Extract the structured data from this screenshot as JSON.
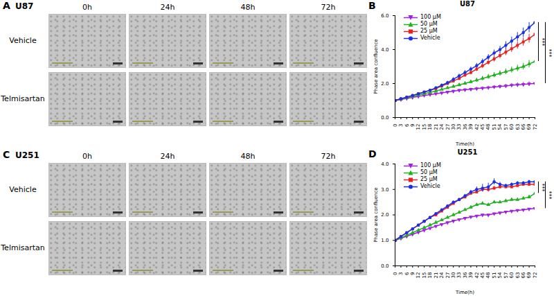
{
  "image_panels": [
    {
      "panel_label": "A",
      "title": "U87",
      "columns": [
        "0h",
        "24h",
        "48h",
        "72h"
      ],
      "rows": [
        "Vehicle",
        "Telmisartan"
      ]
    },
    {
      "panel_label": "C",
      "title": "U251",
      "columns": [
        "0h",
        "24h",
        "48h",
        "72h"
      ],
      "rows": [
        "Vehicle",
        "Telmisartan"
      ]
    }
  ],
  "chart_data": [
    {
      "panel_label": "B",
      "type": "line",
      "title": "U87",
      "x_label": "Time(h)",
      "y_label": "Phase area confluence",
      "x": [
        0,
        3,
        6,
        9,
        12,
        15,
        18,
        21,
        24,
        27,
        30,
        33,
        36,
        39,
        42,
        45,
        48,
        51,
        54,
        57,
        60,
        63,
        66,
        69,
        72
      ],
      "xlim": [
        0,
        72
      ],
      "xticks": [
        0,
        3,
        6,
        9,
        12,
        15,
        18,
        21,
        24,
        27,
        30,
        33,
        36,
        39,
        42,
        45,
        48,
        51,
        54,
        57,
        60,
        63,
        66,
        69,
        72
      ],
      "ylim": [
        0,
        6
      ],
      "yticks": [
        0,
        2,
        4,
        6
      ],
      "legend": "top-left",
      "series": [
        {
          "name": "100 μM",
          "color": "#a020e0",
          "marker": "triangle-down",
          "values": [
            1.0,
            1.06,
            1.12,
            1.18,
            1.24,
            1.3,
            1.35,
            1.4,
            1.45,
            1.5,
            1.55,
            1.6,
            1.63,
            1.66,
            1.7,
            1.73,
            1.76,
            1.8,
            1.83,
            1.86,
            1.9,
            1.93,
            1.95,
            1.98,
            2.0
          ],
          "errors": [
            0,
            0.01,
            0.02,
            0.02,
            0.03,
            0.03,
            0.04,
            0.04,
            0.05,
            0.05,
            0.06,
            0.06,
            0.07,
            0.07,
            0.08,
            0.08,
            0.09,
            0.09,
            0.1,
            0.1,
            0.11,
            0.11,
            0.12,
            0.12,
            0.13
          ]
        },
        {
          "name": "50 μM",
          "color": "#20b020",
          "marker": "triangle",
          "values": [
            1.0,
            1.08,
            1.16,
            1.24,
            1.32,
            1.4,
            1.48,
            1.56,
            1.65,
            1.74,
            1.83,
            1.92,
            2.01,
            2.1,
            2.2,
            2.3,
            2.4,
            2.5,
            2.6,
            2.7,
            2.8,
            2.9,
            3.0,
            3.15,
            3.3
          ],
          "errors": [
            0,
            0.01,
            0.02,
            0.03,
            0.03,
            0.04,
            0.05,
            0.05,
            0.06,
            0.07,
            0.08,
            0.09,
            0.1,
            0.11,
            0.12,
            0.13,
            0.14,
            0.15,
            0.16,
            0.17,
            0.18,
            0.19,
            0.2,
            0.22,
            0.24
          ]
        },
        {
          "name": "25 μM",
          "color": "#e82020",
          "marker": "square",
          "values": [
            1.0,
            1.1,
            1.2,
            1.3,
            1.4,
            1.5,
            1.6,
            1.7,
            1.85,
            2.0,
            2.15,
            2.3,
            2.5,
            2.65,
            2.85,
            3.05,
            3.25,
            3.45,
            3.65,
            3.85,
            4.05,
            4.25,
            4.45,
            4.65,
            4.9
          ],
          "errors": [
            0,
            0.02,
            0.03,
            0.04,
            0.05,
            0.05,
            0.06,
            0.07,
            0.08,
            0.09,
            0.1,
            0.11,
            0.12,
            0.13,
            0.14,
            0.15,
            0.16,
            0.17,
            0.18,
            0.2,
            0.21,
            0.22,
            0.24,
            0.26,
            0.28
          ]
        },
        {
          "name": "Vehicle",
          "color": "#1a30e8",
          "marker": "circle",
          "values": [
            1.0,
            1.1,
            1.2,
            1.3,
            1.4,
            1.5,
            1.6,
            1.75,
            1.9,
            2.05,
            2.25,
            2.45,
            2.65,
            2.85,
            3.05,
            3.3,
            3.55,
            3.8,
            4.0,
            4.25,
            4.5,
            4.75,
            5.0,
            5.3,
            5.6
          ],
          "errors": [
            0,
            0.02,
            0.03,
            0.04,
            0.05,
            0.05,
            0.06,
            0.07,
            0.08,
            0.09,
            0.1,
            0.11,
            0.12,
            0.13,
            0.14,
            0.15,
            0.16,
            0.18,
            0.2,
            0.22,
            0.24,
            0.26,
            0.28,
            0.3,
            0.32
          ]
        }
      ],
      "annotations": [
        {
          "text": "***",
          "from": "Vehicle",
          "to": "50 μM"
        },
        {
          "text": "***",
          "from": "Vehicle",
          "to": "100 μM"
        }
      ]
    },
    {
      "panel_label": "D",
      "type": "line",
      "title": "U251",
      "x_label": "Time(h)",
      "y_label": "Phase area confluence",
      "x": [
        0,
        3,
        6,
        9,
        12,
        15,
        18,
        21,
        24,
        27,
        30,
        33,
        36,
        39,
        42,
        45,
        48,
        51,
        54,
        57,
        60,
        63,
        66,
        69,
        72
      ],
      "xlim": [
        0,
        72
      ],
      "xticks": [
        0,
        3,
        6,
        9,
        12,
        15,
        18,
        21,
        24,
        27,
        30,
        33,
        36,
        39,
        42,
        45,
        48,
        51,
        54,
        57,
        60,
        63,
        66,
        69,
        72
      ],
      "ylim": [
        0,
        4
      ],
      "yticks": [
        0,
        1,
        2,
        3,
        4
      ],
      "legend": "top-left",
      "series": [
        {
          "name": "100 μM",
          "color": "#a020e0",
          "marker": "triangle-down",
          "values": [
            1.0,
            1.08,
            1.16,
            1.24,
            1.32,
            1.4,
            1.48,
            1.56,
            1.63,
            1.7,
            1.76,
            1.82,
            1.87,
            1.92,
            1.96,
            2.0,
            2.0,
            2.05,
            2.08,
            2.12,
            2.15,
            2.18,
            2.2,
            2.23,
            2.25
          ],
          "errors": [
            0,
            0.01,
            0.01,
            0.01,
            0.02,
            0.02,
            0.02,
            0.02,
            0.03,
            0.03,
            0.03,
            0.03,
            0.03,
            0.03,
            0.03,
            0.03,
            0.03,
            0.03,
            0.03,
            0.03,
            0.03,
            0.03,
            0.03,
            0.03,
            0.03
          ]
        },
        {
          "name": "50 μM",
          "color": "#20b020",
          "marker": "triangle",
          "values": [
            1.0,
            1.1,
            1.2,
            1.3,
            1.4,
            1.5,
            1.6,
            1.7,
            1.8,
            1.9,
            2.0,
            2.1,
            2.2,
            2.3,
            2.4,
            2.45,
            2.4,
            2.5,
            2.5,
            2.55,
            2.6,
            2.6,
            2.65,
            2.7,
            2.85
          ],
          "errors": [
            0,
            0.01,
            0.01,
            0.02,
            0.02,
            0.02,
            0.03,
            0.03,
            0.03,
            0.03,
            0.04,
            0.04,
            0.04,
            0.04,
            0.05,
            0.05,
            0.05,
            0.05,
            0.05,
            0.05,
            0.05,
            0.05,
            0.05,
            0.06,
            0.08
          ]
        },
        {
          "name": "25 μM",
          "color": "#e82020",
          "marker": "square",
          "values": [
            1.0,
            1.15,
            1.3,
            1.45,
            1.6,
            1.75,
            1.9,
            2.0,
            2.15,
            2.3,
            2.45,
            2.6,
            2.7,
            2.85,
            2.9,
            3.0,
            3.0,
            3.05,
            3.1,
            3.1,
            3.1,
            3.15,
            3.2,
            3.2,
            3.2
          ],
          "errors": [
            0,
            0.01,
            0.02,
            0.02,
            0.03,
            0.03,
            0.03,
            0.04,
            0.04,
            0.04,
            0.05,
            0.05,
            0.05,
            0.06,
            0.06,
            0.08,
            0.1,
            0.08,
            0.06,
            0.06,
            0.06,
            0.06,
            0.06,
            0.06,
            0.06
          ]
        },
        {
          "name": "Vehicle",
          "color": "#1a30e8",
          "marker": "circle",
          "values": [
            1.0,
            1.15,
            1.3,
            1.45,
            1.6,
            1.75,
            1.9,
            2.05,
            2.2,
            2.35,
            2.5,
            2.6,
            2.75,
            2.9,
            3.0,
            3.05,
            3.1,
            3.3,
            3.2,
            3.15,
            3.2,
            3.25,
            3.25,
            3.3,
            3.3
          ],
          "errors": [
            0,
            0.01,
            0.02,
            0.02,
            0.03,
            0.03,
            0.03,
            0.04,
            0.04,
            0.05,
            0.05,
            0.06,
            0.06,
            0.07,
            0.1,
            0.15,
            0.15,
            0.12,
            0.08,
            0.06,
            0.06,
            0.06,
            0.06,
            0.06,
            0.06
          ]
        }
      ],
      "annotations": [
        {
          "text": "***",
          "from": "Vehicle",
          "to": "50 μM"
        },
        {
          "text": "***",
          "from": "Vehicle",
          "to": "100 μM"
        }
      ]
    }
  ]
}
